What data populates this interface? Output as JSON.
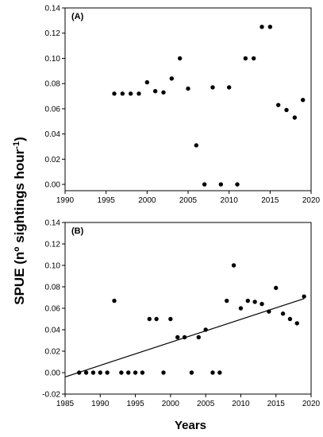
{
  "chart_data": [
    {
      "type": "scatter",
      "panel_label": "(A)",
      "ylabel": "SPUE (nº sightings hour⁻¹)",
      "xlabel": "Years",
      "xlim": [
        1990,
        2020
      ],
      "ylim": [
        -0.005,
        0.14
      ],
      "x_ticks": [
        "1990",
        "1995",
        "2000",
        "2005",
        "2010",
        "2015",
        "2020"
      ],
      "y_ticks": [
        "0.00",
        "0.02",
        "0.04",
        "0.06",
        "0.08",
        "0.10",
        "0.12",
        "0.14"
      ],
      "series": [
        {
          "x": [
            1996,
            1997,
            1998,
            1999,
            2000,
            2001,
            2002,
            2003,
            2004,
            2005,
            2006,
            2007,
            2008,
            2009,
            2010,
            2011,
            2012,
            2013,
            2014,
            2015,
            2016,
            2017,
            2018,
            2019
          ],
          "y": [
            0.072,
            0.072,
            0.072,
            0.072,
            0.081,
            0.074,
            0.073,
            0.084,
            0.1,
            0.076,
            0.031,
            0.0,
            0.077,
            0.0,
            0.077,
            0.0,
            0.1,
            0.1,
            0.125,
            0.125,
            0.063,
            0.059,
            0.053,
            0.067
          ]
        }
      ]
    },
    {
      "type": "scatter",
      "panel_label": "(B)",
      "xlabel": "Years",
      "xlim": [
        1985,
        2020
      ],
      "ylim": [
        -0.02,
        0.14
      ],
      "x_ticks": [
        "1985",
        "1990",
        "1995",
        "2000",
        "2005",
        "2010",
        "2015",
        "2020"
      ],
      "y_ticks": [
        "-0.02",
        "0.00",
        "0.02",
        "0.04",
        "0.06",
        "0.08",
        "0.10",
        "0.12",
        "0.14"
      ],
      "series": [
        {
          "x": [
            1987,
            1988,
            1989,
            1990,
            1991,
            1992,
            1993,
            1994,
            1995,
            1996,
            1997,
            1998,
            1999,
            2000,
            2001,
            2002,
            2003,
            2004,
            2005,
            2006,
            2007,
            2008,
            2009,
            2010,
            2011,
            2012,
            2013,
            2014,
            2015,
            2016,
            2017,
            2018,
            2019
          ],
          "y": [
            0.0,
            0.0,
            0.0,
            0.0,
            0.0,
            0.067,
            0.0,
            0.0,
            0.0,
            0.0,
            0.05,
            0.05,
            0.0,
            0.05,
            0.033,
            0.033,
            0.0,
            0.033,
            0.04,
            0.0,
            0.0,
            0.067,
            0.1,
            0.06,
            0.067,
            0.066,
            0.064,
            0.057,
            0.079,
            0.055,
            0.05,
            0.046,
            0.071
          ]
        }
      ],
      "trend_line": {
        "x": [
          1985,
          2019
        ],
        "y": [
          -0.004,
          0.069
        ]
      }
    }
  ],
  "shared": {
    "ylabel": "SPUE (nº sightings hour",
    "ylabel_sup": "-1",
    "ylabel_close": ")",
    "xlabel": "Years"
  }
}
